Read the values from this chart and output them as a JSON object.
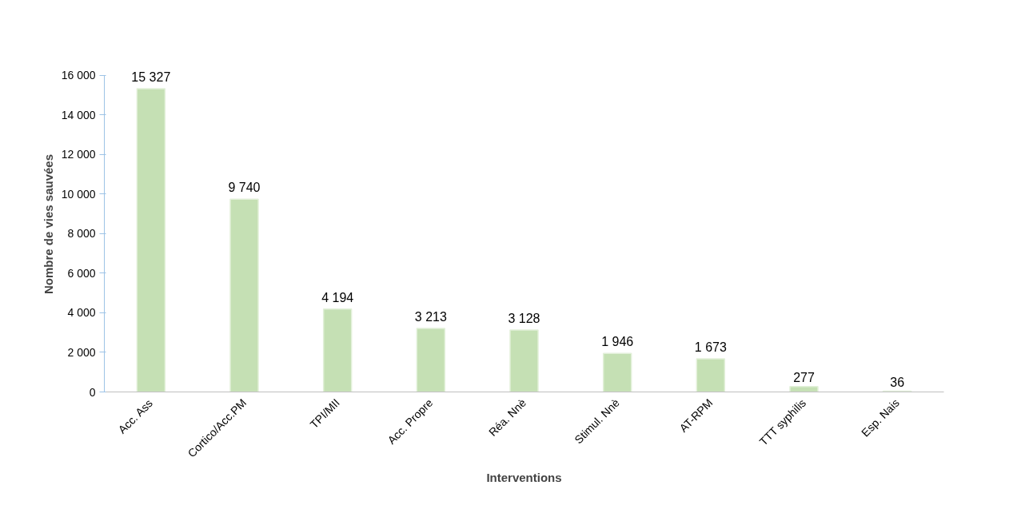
{
  "chart_data": {
    "type": "bar",
    "xlabel": "Interventions",
    "ylabel": "Nombre de vies sauvées",
    "categories": [
      "Acc. Ass",
      "Cortico/Acc.PM",
      "TPI/MII",
      "Acc. Propre",
      "Réa. Nnè",
      "Stimul. Nnè",
      "AT-RPM",
      "TTT syphilis",
      "Esp. Nais"
    ],
    "values": [
      15327,
      9740,
      4194,
      3213,
      3128,
      1946,
      1673,
      277,
      36
    ],
    "value_labels": [
      "15 327",
      "9 740",
      "4 194",
      "3 213",
      "3 128",
      "1 946",
      "1 673",
      "277",
      "36"
    ],
    "color": "#c5e0b4",
    "ylim": [
      0,
      16000
    ],
    "yticks": [
      {
        "value": 0,
        "label": "0"
      },
      {
        "value": 2000,
        "label": "2 000"
      },
      {
        "value": 4000,
        "label": "4 000"
      },
      {
        "value": 6000,
        "label": "6 000"
      },
      {
        "value": 8000,
        "label": "8 000"
      },
      {
        "value": 10000,
        "label": "10 000"
      },
      {
        "value": 12000,
        "label": "12 000"
      },
      {
        "value": 14000,
        "label": "14 000"
      },
      {
        "value": 16000,
        "label": "16 000"
      }
    ],
    "grid": false
  }
}
